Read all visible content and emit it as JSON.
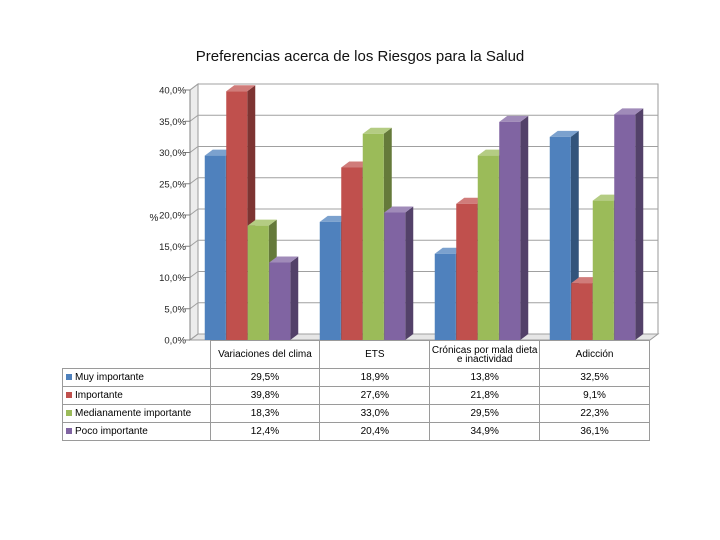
{
  "chart_data": {
    "type": "bar",
    "title": "Preferencias acerca de los Riesgos para la Salud",
    "ylabel": "%",
    "ylim": [
      0,
      40
    ],
    "yticks": [
      "0,0%",
      "5,0%",
      "10,0%",
      "15,0%",
      "20,0%",
      "25,0%",
      "30,0%",
      "35,0%",
      "40,0%"
    ],
    "grid": true,
    "legend": "bottom-table",
    "categories": [
      "Variaciones del clima",
      "ETS",
      "Crónicas por mala dieta e inactividad",
      "Adicción"
    ],
    "series": [
      {
        "name": "Muy importante",
        "color": "#4f81bd",
        "values": [
          29.5,
          18.9,
          13.8,
          32.5
        ],
        "labels": [
          "29,5%",
          "18,9%",
          "13,8%",
          "32,5%"
        ]
      },
      {
        "name": "Importante",
        "color": "#c0504d",
        "values": [
          39.8,
          27.6,
          21.8,
          9.1
        ],
        "labels": [
          "39,8%",
          "27,6%",
          "21,8%",
          "9,1%"
        ]
      },
      {
        "name": "Medianamente importante",
        "color": "#9bbb59",
        "values": [
          18.3,
          33.0,
          29.5,
          22.3
        ],
        "labels": [
          "18,3%",
          "33,0%",
          "29,5%",
          "22,3%"
        ]
      },
      {
        "name": "Poco importante",
        "color": "#8064a2",
        "values": [
          12.4,
          20.4,
          34.9,
          36.1
        ],
        "labels": [
          "12,4%",
          "20,4%",
          "34,9%",
          "36,1%"
        ]
      }
    ]
  }
}
